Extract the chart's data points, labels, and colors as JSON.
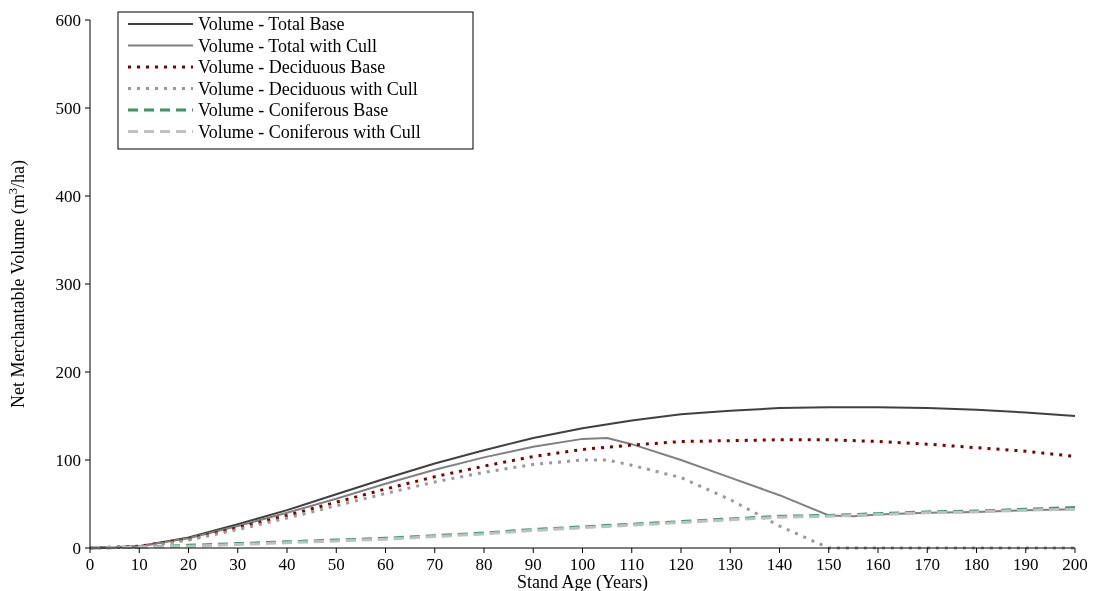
{
  "chart_data": {
    "type": "line",
    "xlabel": "Stand Age (Years)",
    "ylabel": "Net Merchantable Volume (m$^{3}$/ha)",
    "xlim": [
      0,
      200
    ],
    "xticks": [
      0,
      10,
      20,
      30,
      40,
      50,
      60,
      70,
      80,
      90,
      100,
      110,
      120,
      130,
      140,
      150,
      160,
      170,
      180,
      190,
      200
    ],
    "ylim": [
      0,
      600
    ],
    "yticks": [
      0,
      100,
      200,
      300,
      400,
      500,
      600
    ],
    "grid": false,
    "legend": "top left",
    "marker": "none",
    "series": [
      {
        "name": "Volume - Total Base",
        "color": "#404040",
        "line_style": "solid",
        "x": [
          0,
          10,
          20,
          30,
          40,
          50,
          60,
          70,
          80,
          90,
          100,
          110,
          120,
          130,
          140,
          150,
          160,
          170,
          180,
          190,
          200
        ],
        "values": [
          0,
          2,
          12,
          27,
          43,
          61,
          79,
          96,
          111,
          125,
          136,
          145,
          152,
          156,
          159,
          160,
          160,
          159,
          157,
          154,
          150
        ]
      },
      {
        "name": "Volume - Total with Cull",
        "color": "#808080",
        "line_style": "solid",
        "x": [
          0,
          10,
          20,
          30,
          40,
          50,
          60,
          70,
          80,
          90,
          100,
          105,
          110,
          120,
          130,
          140,
          150,
          155,
          160,
          170,
          180,
          190,
          200
        ],
        "values": [
          0,
          2,
          11,
          25,
          40,
          56,
          73,
          89,
          103,
          115,
          124,
          125,
          118,
          100,
          80,
          60,
          37,
          36,
          38,
          40,
          41,
          43,
          44
        ]
      },
      {
        "name": "Volume - Deciduous Base",
        "color": "#800000",
        "line_style": "dotted",
        "x": [
          0,
          10,
          20,
          30,
          40,
          50,
          60,
          70,
          80,
          90,
          100,
          110,
          120,
          130,
          140,
          150,
          160,
          170,
          180,
          190,
          200
        ],
        "values": [
          0,
          2,
          10,
          23,
          37,
          52,
          67,
          81,
          93,
          104,
          112,
          117,
          121,
          122,
          123,
          123,
          121,
          118,
          114,
          110,
          104
        ]
      },
      {
        "name": "Volume - Deciduous with Cull",
        "color": "#999999",
        "line_style": "dotted",
        "x": [
          0,
          10,
          20,
          30,
          40,
          50,
          60,
          70,
          80,
          90,
          100,
          105,
          110,
          120,
          130,
          140,
          150,
          160,
          170,
          180,
          190,
          200
        ],
        "values": [
          0,
          1,
          9,
          21,
          34,
          48,
          62,
          75,
          86,
          95,
          100,
          100,
          94,
          80,
          55,
          25,
          0,
          0,
          0,
          0,
          0,
          0
        ]
      },
      {
        "name": "Volume - Coniferous Base",
        "color": "#339966",
        "line_style": "dashed",
        "x": [
          0,
          10,
          20,
          30,
          40,
          50,
          60,
          70,
          80,
          90,
          100,
          110,
          120,
          130,
          140,
          150,
          160,
          170,
          180,
          190,
          200
        ],
        "values": [
          0,
          1,
          3,
          5,
          7,
          9,
          11,
          14,
          17,
          21,
          24,
          27,
          30,
          33,
          36,
          37,
          39,
          41,
          42,
          44,
          46
        ]
      },
      {
        "name": "Volume - Coniferous with Cull",
        "color": "#c0c0c0",
        "line_style": "dashed",
        "x": [
          0,
          10,
          20,
          30,
          40,
          50,
          60,
          70,
          80,
          90,
          100,
          110,
          120,
          130,
          140,
          150,
          160,
          170,
          180,
          190,
          200
        ],
        "values": [
          0,
          1,
          2,
          4,
          6,
          8,
          10,
          13,
          16,
          20,
          23,
          26,
          29,
          32,
          35,
          36,
          38,
          40,
          41,
          43,
          44
        ]
      }
    ]
  }
}
